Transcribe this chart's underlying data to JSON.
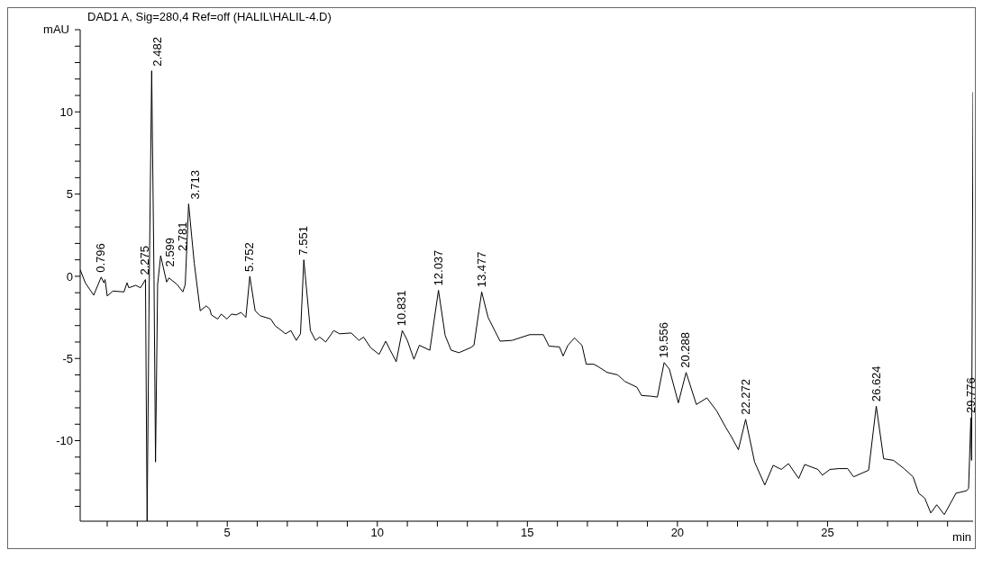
{
  "chart_data": {
    "type": "line",
    "title": "DAD1 A, Sig=280,4 Ref=off (HALIL\\HALIL-4.D)",
    "xlabel": "min",
    "ylabel": "mAU",
    "x": [
      0.1,
      0.27,
      0.55,
      0.8,
      0.89,
      0.93,
      1.0,
      1.19,
      1.56,
      1.66,
      1.72,
      1.95,
      2.11,
      2.275,
      2.33,
      2.4,
      2.482,
      2.56,
      2.61,
      2.68,
      2.781,
      2.98,
      3.06,
      3.33,
      3.52,
      3.6,
      3.713,
      3.9,
      4.1,
      4.3,
      4.42,
      4.47,
      4.68,
      4.8,
      4.99,
      5.14,
      5.3,
      5.46,
      5.62,
      5.752,
      5.93,
      6.09,
      6.45,
      6.59,
      6.94,
      7.12,
      7.3,
      7.44,
      7.551,
      7.77,
      7.94,
      8.08,
      8.28,
      8.55,
      8.74,
      9.13,
      9.39,
      9.54,
      9.78,
      10.06,
      10.28,
      10.43,
      10.63,
      10.831,
      11.0,
      11.22,
      11.4,
      11.75,
      12.037,
      12.26,
      12.46,
      12.72,
      13.1,
      13.22,
      13.477,
      13.69,
      14.09,
      14.49,
      15.08,
      15.53,
      15.72,
      16.07,
      16.19,
      16.35,
      16.57,
      16.82,
      16.96,
      17.21,
      17.36,
      17.66,
      18.01,
      18.25,
      18.65,
      18.8,
      19.14,
      19.33,
      19.556,
      19.73,
      20.03,
      20.288,
      20.63,
      20.98,
      21.31,
      21.61,
      21.81,
      22.03,
      22.272,
      22.57,
      22.91,
      23.19,
      23.46,
      23.7,
      24.04,
      24.24,
      24.68,
      24.83,
      25.08,
      25.38,
      25.67,
      25.87,
      26.37,
      26.624,
      26.87,
      27.2,
      27.55,
      27.85,
      28.04,
      28.24,
      28.44,
      28.64,
      28.89,
      29.28,
      29.63,
      29.7,
      29.776,
      29.8,
      29.85
    ],
    "series": [
      {
        "color": "#000000",
        "values": [
          0.4,
          -0.4,
          -1.15,
          -0.05,
          -0.4,
          -0.2,
          -1.2,
          -0.9,
          -0.95,
          -0.4,
          -0.7,
          -0.55,
          -0.7,
          -0.2,
          -14.9,
          -0.5,
          12.5,
          -0.2,
          -11.3,
          -0.5,
          1.25,
          -0.35,
          -0.1,
          -0.5,
          -0.95,
          -0.5,
          4.4,
          0.8,
          -2.1,
          -1.8,
          -2.0,
          -2.35,
          -2.6,
          -2.3,
          -2.6,
          -2.3,
          -2.35,
          -2.2,
          -2.5,
          0.0,
          -2.1,
          -2.4,
          -2.6,
          -3.0,
          -3.5,
          -3.3,
          -3.9,
          -3.5,
          1.0,
          -3.3,
          -3.9,
          -3.7,
          -4.0,
          -3.3,
          -3.5,
          -3.45,
          -3.9,
          -3.7,
          -4.35,
          -4.75,
          -3.95,
          -4.5,
          -5.2,
          -3.3,
          -3.9,
          -5.05,
          -4.2,
          -4.5,
          -0.85,
          -3.6,
          -4.5,
          -4.65,
          -4.35,
          -4.2,
          -0.95,
          -2.5,
          -3.95,
          -3.9,
          -3.55,
          -3.55,
          -4.25,
          -4.3,
          -4.85,
          -4.2,
          -3.75,
          -4.2,
          -5.35,
          -5.35,
          -5.5,
          -5.85,
          -6.0,
          -6.4,
          -6.75,
          -7.25,
          -7.3,
          -7.35,
          -5.25,
          -5.65,
          -7.7,
          -5.85,
          -7.8,
          -7.4,
          -8.2,
          -9.2,
          -9.8,
          -10.55,
          -8.7,
          -11.3,
          -12.7,
          -11.5,
          -11.75,
          -11.4,
          -12.3,
          -11.45,
          -11.75,
          -12.1,
          -11.75,
          -11.7,
          -11.7,
          -12.2,
          -11.8,
          -7.9,
          -11.1,
          -11.2,
          -11.7,
          -12.2,
          -13.2,
          -13.5,
          -14.4,
          -13.9,
          -14.5,
          -13.2,
          -13.05,
          -12.9,
          -8.6,
          -11.2,
          11.2
        ]
      }
    ],
    "annotations": [
      {
        "text": "0.796",
        "x": 0.796,
        "y": -0.05
      },
      {
        "text": "2.275",
        "x": 2.275,
        "y": -0.2
      },
      {
        "text": "2.599",
        "x": 2.599,
        "y": 0.3
      },
      {
        "text": "2.482",
        "x": 2.482,
        "y": 12.5
      },
      {
        "text": "2.781",
        "x": 2.781,
        "y": 1.25
      },
      {
        "text": "3.713",
        "x": 3.713,
        "y": 4.4
      },
      {
        "text": "5.752",
        "x": 5.752,
        "y": 0.0
      },
      {
        "text": "7.551",
        "x": 7.551,
        "y": 1.0
      },
      {
        "text": "10.831",
        "x": 10.831,
        "y": -3.3
      },
      {
        "text": "12.037",
        "x": 12.037,
        "y": -0.85
      },
      {
        "text": "13.477",
        "x": 13.477,
        "y": -0.95
      },
      {
        "text": "19.556",
        "x": 19.556,
        "y": -5.25
      },
      {
        "text": "20.288",
        "x": 20.288,
        "y": -5.85
      },
      {
        "text": "22.272",
        "x": 22.272,
        "y": -8.7
      },
      {
        "text": "26.624",
        "x": 26.624,
        "y": -7.9
      },
      {
        "text": "29.776",
        "x": 29.776,
        "y": -8.6
      }
    ],
    "xlim": [
      0.1,
      29.85
    ],
    "ylim": [
      -14.9,
      15
    ],
    "xticks": [
      {
        "value": 1,
        "label": null
      },
      {
        "value": 2,
        "label": null
      },
      {
        "value": 3,
        "label": null
      },
      {
        "value": 4,
        "label": null
      },
      5,
      {
        "value": 6,
        "label": null
      },
      {
        "value": 7,
        "label": null
      },
      {
        "value": 8,
        "label": null
      },
      {
        "value": 9,
        "label": null
      },
      10,
      {
        "value": 11,
        "label": null
      },
      {
        "value": 12,
        "label": null
      },
      {
        "value": 13,
        "label": null
      },
      {
        "value": 14,
        "label": null
      },
      15,
      {
        "value": 16,
        "label": null
      },
      {
        "value": 17,
        "label": null
      },
      {
        "value": 18,
        "label": null
      },
      {
        "value": 19,
        "label": null
      },
      20,
      {
        "value": 21,
        "label": null
      },
      {
        "value": 22,
        "label": null
      },
      {
        "value": 23,
        "label": null
      },
      {
        "value": 24,
        "label": null
      },
      25,
      {
        "value": 26,
        "label": null
      },
      {
        "value": 27,
        "label": null
      },
      {
        "value": 28,
        "label": null
      },
      {
        "value": 29,
        "label": null
      }
    ],
    "yticks": [
      {
        "value": -14,
        "label": null
      },
      {
        "value": -13,
        "label": null
      },
      {
        "value": -12,
        "label": null
      },
      {
        "value": -11,
        "label": null
      },
      -10,
      {
        "value": -9,
        "label": null
      },
      {
        "value": -8,
        "label": null
      },
      {
        "value": -7,
        "label": null
      },
      {
        "value": -6,
        "label": null
      },
      -5,
      {
        "value": -4,
        "label": null
      },
      {
        "value": -3,
        "label": null
      },
      {
        "value": -2,
        "label": null
      },
      {
        "value": -1,
        "label": null
      },
      0,
      {
        "value": 1,
        "label": null
      },
      {
        "value": 2,
        "label": null
      },
      {
        "value": 3,
        "label": null
      },
      {
        "value": 4,
        "label": null
      },
      5,
      {
        "value": 6,
        "label": null
      },
      {
        "value": 7,
        "label": null
      },
      {
        "value": 8,
        "label": null
      },
      {
        "value": 9,
        "label": null
      },
      10,
      {
        "value": 11,
        "label": null
      },
      {
        "value": 12,
        "label": null
      },
      {
        "value": 13,
        "label": null
      },
      {
        "value": 14,
        "label": null
      },
      {
        "value": 15,
        "label": null
      }
    ],
    "grid": false,
    "legend": false,
    "marker": "none",
    "line_style": "solid"
  }
}
